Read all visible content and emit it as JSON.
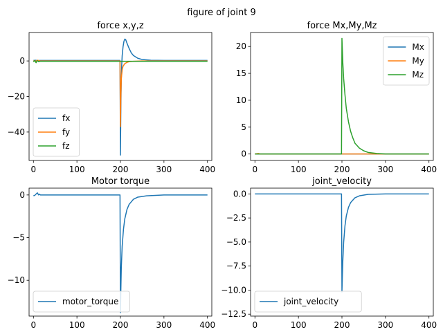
{
  "figure": {
    "suptitle": "figure of joint 9"
  },
  "chart_data": [
    {
      "type": "line",
      "title": "force x,y,z",
      "xlabel": "",
      "ylabel": "",
      "xlim": [
        -10,
        410
      ],
      "ylim": [
        -56,
        16
      ],
      "xticks": [
        0,
        100,
        200,
        300,
        400
      ],
      "yticks": [
        -40,
        -20,
        0
      ],
      "ytick_labels": [
        "−40",
        "−20",
        "0"
      ],
      "legend_loc": "lower-left",
      "series": [
        {
          "name": "fx",
          "color": "#1f77b4",
          "points": [
            [
              0,
              0.3
            ],
            [
              5,
              0.4
            ],
            [
              10,
              0.2
            ],
            [
              15,
              0.3
            ],
            [
              199,
              0.3
            ],
            [
              200,
              -53
            ],
            [
              201,
              -25
            ],
            [
              202,
              -10
            ],
            [
              203,
              -2
            ],
            [
              204,
              3
            ],
            [
              206,
              8
            ],
            [
              208,
              11
            ],
            [
              210,
              12.3
            ],
            [
              212,
              12
            ],
            [
              215,
              10
            ],
            [
              220,
              7
            ],
            [
              225,
              4.5
            ],
            [
              230,
              3
            ],
            [
              240,
              1.5
            ],
            [
              250,
              0.8
            ],
            [
              270,
              0.4
            ],
            [
              300,
              0.3
            ],
            [
              400,
              0.3
            ]
          ]
        },
        {
          "name": "fy",
          "color": "#ff7f0e",
          "points": [
            [
              0,
              0.1
            ],
            [
              5,
              -0.1
            ],
            [
              10,
              0.4
            ],
            [
              15,
              0
            ],
            [
              199,
              0
            ],
            [
              200,
              -37
            ],
            [
              201,
              -20
            ],
            [
              202,
              -10
            ],
            [
              204,
              -5
            ],
            [
              206,
              -3
            ],
            [
              210,
              -1.5
            ],
            [
              215,
              -0.8
            ],
            [
              220,
              -0.4
            ],
            [
              230,
              -0.2
            ],
            [
              250,
              0
            ],
            [
              400,
              0
            ]
          ]
        },
        {
          "name": "fz",
          "color": "#2ca02c",
          "points": [
            [
              0,
              -0.5
            ],
            [
              3,
              0.3
            ],
            [
              6,
              -1
            ],
            [
              9,
              0.2
            ],
            [
              12,
              -0.4
            ],
            [
              15,
              -0.2
            ],
            [
              199,
              -0.2
            ],
            [
              210,
              -0.2
            ],
            [
              400,
              -0.2
            ]
          ]
        }
      ]
    },
    {
      "type": "line",
      "title": "force Mx,My,Mz",
      "xlabel": "",
      "ylabel": "",
      "xlim": [
        -10,
        410
      ],
      "ylim": [
        -1.2,
        22.6
      ],
      "xticks": [
        0,
        100,
        200,
        300,
        400
      ],
      "yticks": [
        0,
        5,
        10,
        15,
        20
      ],
      "ytick_labels": [
        "0",
        "5",
        "10",
        "15",
        "20"
      ],
      "legend_loc": "upper-right",
      "series": [
        {
          "name": "Mx",
          "color": "#1f77b4",
          "points": [
            [
              0,
              0
            ],
            [
              199,
              0
            ],
            [
              200,
              0
            ],
            [
              400,
              0
            ]
          ]
        },
        {
          "name": "My",
          "color": "#ff7f0e",
          "points": [
            [
              0,
              0
            ],
            [
              8,
              0.1
            ],
            [
              12,
              0
            ],
            [
              400,
              0
            ]
          ]
        },
        {
          "name": "Mz",
          "color": "#2ca02c",
          "points": [
            [
              0,
              0
            ],
            [
              199,
              0
            ],
            [
              200,
              21.5
            ],
            [
              202,
              17
            ],
            [
              204,
              14
            ],
            [
              207,
              11
            ],
            [
              210,
              8.5
            ],
            [
              215,
              6
            ],
            [
              220,
              4.2
            ],
            [
              225,
              3
            ],
            [
              230,
              2
            ],
            [
              240,
              1.1
            ],
            [
              250,
              0.6
            ],
            [
              260,
              0.3
            ],
            [
              280,
              0.1
            ],
            [
              300,
              0
            ],
            [
              400,
              0
            ]
          ]
        }
      ]
    },
    {
      "type": "line",
      "title": "Motor torque",
      "xlabel": "",
      "ylabel": "",
      "xlim": [
        -10,
        410
      ],
      "ylim": [
        -14.2,
        0.8
      ],
      "xticks": [
        0,
        100,
        200,
        300,
        400
      ],
      "yticks": [
        -10,
        -5,
        0
      ],
      "ytick_labels": [
        "−10",
        "−5",
        "0"
      ],
      "legend_loc": "lower-left",
      "series": [
        {
          "name": "motor_torque",
          "color": "#1f77b4",
          "points": [
            [
              0,
              -0.1
            ],
            [
              3,
              -0.05
            ],
            [
              6,
              0.1
            ],
            [
              9,
              0.25
            ],
            [
              12,
              0
            ],
            [
              14,
              0.1
            ],
            [
              16,
              0
            ],
            [
              199,
              0
            ],
            [
              200,
              -13.8
            ],
            [
              201,
              -11
            ],
            [
              202,
              -8.5
            ],
            [
              204,
              -6
            ],
            [
              207,
              -4
            ],
            [
              210,
              -2.8
            ],
            [
              215,
              -1.7
            ],
            [
              220,
              -1.1
            ],
            [
              230,
              -0.5
            ],
            [
              240,
              -0.25
            ],
            [
              260,
              -0.1
            ],
            [
              300,
              0
            ],
            [
              400,
              0
            ]
          ]
        }
      ]
    },
    {
      "type": "line",
      "title": "joint_velocity",
      "xlabel": "",
      "ylabel": "",
      "xlim": [
        -10,
        410
      ],
      "ylim": [
        -12.7,
        0.6
      ],
      "xticks": [
        0,
        100,
        200,
        300,
        400
      ],
      "yticks": [
        -12.5,
        -10,
        -7.5,
        -5,
        -2.5,
        0
      ],
      "ytick_labels": [
        "−12.5",
        "−10.0",
        "−7.5",
        "−5.0",
        "−2.5",
        "0.0"
      ],
      "legend_loc": "lower-left",
      "series": [
        {
          "name": "joint_velocity",
          "color": "#1f77b4",
          "points": [
            [
              0,
              0
            ],
            [
              199,
              0
            ],
            [
              200,
              -10.2
            ],
            [
              201,
              -8.5
            ],
            [
              202,
              -7
            ],
            [
              204,
              -5
            ],
            [
              207,
              -3.3
            ],
            [
              210,
              -2.3
            ],
            [
              215,
              -1.4
            ],
            [
              220,
              -0.9
            ],
            [
              230,
              -0.4
            ],
            [
              240,
              -0.2
            ],
            [
              260,
              -0.05
            ],
            [
              300,
              0
            ],
            [
              400,
              0
            ]
          ]
        }
      ]
    }
  ]
}
